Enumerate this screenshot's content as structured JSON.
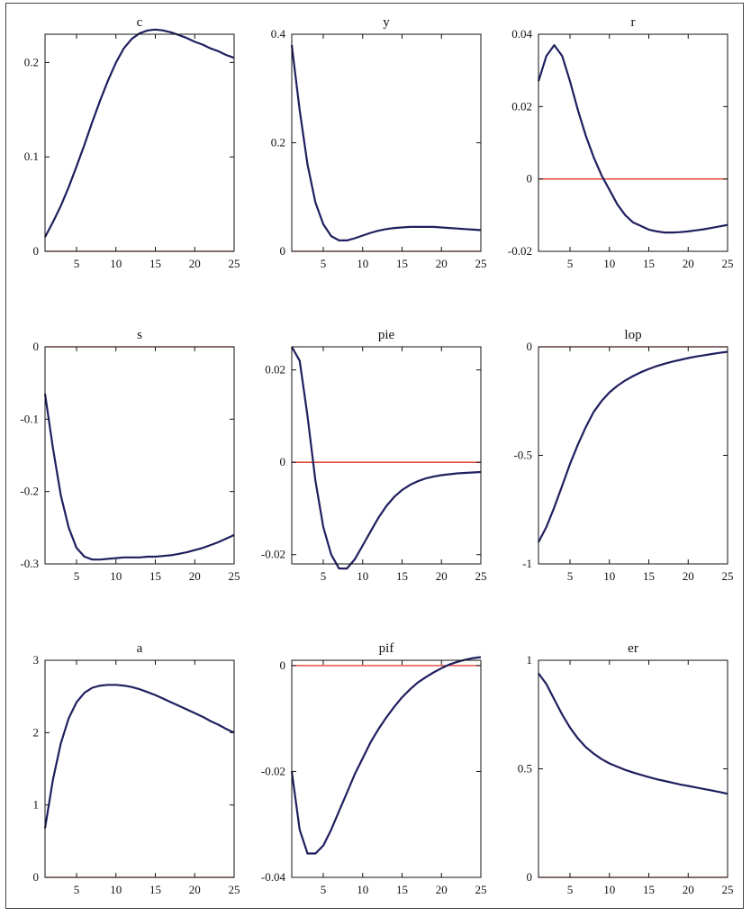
{
  "chart_data": [
    {
      "type": "line",
      "title": "c",
      "x": [
        1,
        2,
        3,
        4,
        5,
        6,
        7,
        8,
        9,
        10,
        11,
        12,
        13,
        14,
        15,
        16,
        17,
        18,
        19,
        20,
        21,
        22,
        23,
        24,
        25
      ],
      "values": [
        0.015,
        0.031,
        0.048,
        0.068,
        0.09,
        0.113,
        0.137,
        0.16,
        0.181,
        0.2,
        0.215,
        0.225,
        0.231,
        0.234,
        0.235,
        0.234,
        0.232,
        0.229,
        0.226,
        0.222,
        0.219,
        0.215,
        0.212,
        0.208,
        0.205
      ],
      "xlim": [
        1,
        25
      ],
      "ylim": [
        0,
        0.23
      ],
      "yticks": [
        0,
        0.1,
        0.2
      ],
      "ytick_labels": [
        "0",
        "0.1",
        "0.2"
      ],
      "xticks": [
        5,
        10,
        15,
        20,
        25
      ],
      "xtick_labels": [
        "5",
        "10",
        "15",
        "20",
        "25"
      ],
      "zero_line": 0
    },
    {
      "type": "line",
      "title": "y",
      "x": [
        1,
        2,
        3,
        4,
        5,
        6,
        7,
        8,
        9,
        10,
        11,
        12,
        13,
        14,
        15,
        16,
        17,
        18,
        19,
        20,
        21,
        22,
        23,
        24,
        25
      ],
      "values": [
        0.38,
        0.26,
        0.16,
        0.09,
        0.05,
        0.028,
        0.02,
        0.02,
        0.024,
        0.029,
        0.034,
        0.038,
        0.041,
        0.043,
        0.044,
        0.045,
        0.045,
        0.045,
        0.045,
        0.044,
        0.043,
        0.042,
        0.041,
        0.04,
        0.039
      ],
      "xlim": [
        1,
        25
      ],
      "ylim": [
        0,
        0.4
      ],
      "yticks": [
        0,
        0.2,
        0.4
      ],
      "ytick_labels": [
        "0",
        "0.2",
        "0.4"
      ],
      "xticks": [
        5,
        10,
        15,
        20,
        25
      ],
      "xtick_labels": [
        "5",
        "10",
        "15",
        "20",
        "25"
      ],
      "zero_line": 0
    },
    {
      "type": "line",
      "title": "r",
      "x": [
        1,
        2,
        3,
        4,
        5,
        6,
        7,
        8,
        9,
        10,
        11,
        12,
        13,
        14,
        15,
        16,
        17,
        18,
        19,
        20,
        21,
        22,
        23,
        24,
        25
      ],
      "values": [
        0.027,
        0.034,
        0.037,
        0.034,
        0.027,
        0.019,
        0.012,
        0.006,
        0.001,
        -0.003,
        -0.007,
        -0.01,
        -0.012,
        -0.013,
        -0.014,
        -0.0145,
        -0.0148,
        -0.0148,
        -0.0147,
        -0.0145,
        -0.0142,
        -0.0139,
        -0.0135,
        -0.0131,
        -0.0127
      ],
      "xlim": [
        1,
        25
      ],
      "ylim": [
        -0.02,
        0.04
      ],
      "yticks": [
        -0.02,
        0,
        0.02,
        0.04
      ],
      "ytick_labels": [
        "-0.02",
        "0",
        "0.02",
        "0.04"
      ],
      "xticks": [
        5,
        10,
        15,
        20,
        25
      ],
      "xtick_labels": [
        "5",
        "10",
        "15",
        "20",
        "25"
      ],
      "zero_line": 0
    },
    {
      "type": "line",
      "title": "s",
      "x": [
        1,
        2,
        3,
        4,
        5,
        6,
        7,
        8,
        9,
        10,
        11,
        12,
        13,
        14,
        15,
        16,
        17,
        18,
        19,
        20,
        21,
        22,
        23,
        24,
        25
      ],
      "values": [
        -0.065,
        -0.14,
        -0.205,
        -0.25,
        -0.278,
        -0.29,
        -0.294,
        -0.294,
        -0.293,
        -0.292,
        -0.291,
        -0.291,
        -0.291,
        -0.29,
        -0.29,
        -0.289,
        -0.288,
        -0.286,
        -0.284,
        -0.281,
        -0.278,
        -0.274,
        -0.27,
        -0.265,
        -0.26
      ],
      "xlim": [
        1,
        25
      ],
      "ylim": [
        -0.3,
        0
      ],
      "yticks": [
        -0.3,
        -0.2,
        -0.1,
        0
      ],
      "ytick_labels": [
        "-0.3",
        "-0.2",
        "-0.1",
        "0"
      ],
      "xticks": [
        5,
        10,
        15,
        20,
        25
      ],
      "xtick_labels": [
        "5",
        "10",
        "15",
        "20",
        "25"
      ],
      "zero_line": 0
    },
    {
      "type": "line",
      "title": "pie",
      "x": [
        1,
        2,
        3,
        4,
        5,
        6,
        7,
        8,
        9,
        10,
        11,
        12,
        13,
        14,
        15,
        16,
        17,
        18,
        19,
        20,
        21,
        22,
        23,
        24,
        25
      ],
      "values": [
        0.025,
        0.022,
        0.01,
        -0.004,
        -0.014,
        -0.02,
        -0.023,
        -0.023,
        -0.021,
        -0.018,
        -0.015,
        -0.012,
        -0.0095,
        -0.0075,
        -0.006,
        -0.0049,
        -0.0041,
        -0.0035,
        -0.0031,
        -0.0028,
        -0.0026,
        -0.0024,
        -0.0023,
        -0.0022,
        -0.0021
      ],
      "xlim": [
        1,
        25
      ],
      "ylim": [
        -0.022,
        0.025
      ],
      "yticks": [
        -0.02,
        0,
        0.02
      ],
      "ytick_labels": [
        "-0.02",
        "0",
        "0.02"
      ],
      "xticks": [
        5,
        10,
        15,
        20,
        25
      ],
      "xtick_labels": [
        "5",
        "10",
        "15",
        "20",
        "25"
      ],
      "zero_line": 0
    },
    {
      "type": "line",
      "title": "lop",
      "x": [
        1,
        2,
        3,
        4,
        5,
        6,
        7,
        8,
        9,
        10,
        11,
        12,
        13,
        14,
        15,
        16,
        17,
        18,
        19,
        20,
        21,
        22,
        23,
        24,
        25
      ],
      "values": [
        -0.9,
        -0.83,
        -0.74,
        -0.64,
        -0.54,
        -0.45,
        -0.37,
        -0.3,
        -0.25,
        -0.21,
        -0.18,
        -0.155,
        -0.135,
        -0.117,
        -0.102,
        -0.089,
        -0.078,
        -0.068,
        -0.06,
        -0.052,
        -0.045,
        -0.039,
        -0.033,
        -0.028,
        -0.023
      ],
      "xlim": [
        1,
        25
      ],
      "ylim": [
        -1,
        0
      ],
      "yticks": [
        -1,
        -0.5,
        0
      ],
      "ytick_labels": [
        "-1",
        "-0.5",
        "0"
      ],
      "xticks": [
        5,
        10,
        15,
        20,
        25
      ],
      "xtick_labels": [
        "5",
        "10",
        "15",
        "20",
        "25"
      ],
      "zero_line": 0
    },
    {
      "type": "line",
      "title": "a",
      "x": [
        1,
        2,
        3,
        4,
        5,
        6,
        7,
        8,
        9,
        10,
        11,
        12,
        13,
        14,
        15,
        16,
        17,
        18,
        19,
        20,
        21,
        22,
        23,
        24,
        25
      ],
      "values": [
        0.68,
        1.35,
        1.85,
        2.2,
        2.42,
        2.55,
        2.62,
        2.65,
        2.66,
        2.66,
        2.65,
        2.63,
        2.6,
        2.56,
        2.52,
        2.47,
        2.42,
        2.37,
        2.32,
        2.27,
        2.22,
        2.16,
        2.11,
        2.05,
        2.0
      ],
      "xlim": [
        1,
        25
      ],
      "ylim": [
        0,
        3
      ],
      "yticks": [
        0,
        1,
        2,
        3
      ],
      "ytick_labels": [
        "0",
        "1",
        "2",
        "3"
      ],
      "xticks": [
        5,
        10,
        15,
        20,
        25
      ],
      "xtick_labels": [
        "5",
        "10",
        "15",
        "20",
        "25"
      ],
      "zero_line": 0
    },
    {
      "type": "line",
      "title": "pif",
      "x": [
        1,
        2,
        3,
        4,
        5,
        6,
        7,
        8,
        9,
        10,
        11,
        12,
        13,
        14,
        15,
        16,
        17,
        18,
        19,
        20,
        21,
        22,
        23,
        24,
        25
      ],
      "values": [
        -0.02,
        -0.031,
        -0.0355,
        -0.0355,
        -0.034,
        -0.031,
        -0.0275,
        -0.024,
        -0.0205,
        -0.0175,
        -0.0145,
        -0.012,
        -0.0098,
        -0.0078,
        -0.006,
        -0.0045,
        -0.0032,
        -0.0022,
        -0.0013,
        -0.0005,
        0.0002,
        0.0007,
        0.0011,
        0.0014,
        0.0016
      ],
      "xlim": [
        1,
        25
      ],
      "ylim": [
        -0.04,
        0.001
      ],
      "yticks": [
        -0.04,
        -0.02,
        0
      ],
      "ytick_labels": [
        "-0.04",
        "-0.02",
        "0"
      ],
      "xticks": [
        5,
        10,
        15,
        20,
        25
      ],
      "xtick_labels": [
        "5",
        "10",
        "15",
        "20",
        "25"
      ],
      "zero_line": 0
    },
    {
      "type": "line",
      "title": "er",
      "x": [
        1,
        2,
        3,
        4,
        5,
        6,
        7,
        8,
        9,
        10,
        11,
        12,
        13,
        14,
        15,
        16,
        17,
        18,
        19,
        20,
        21,
        22,
        23,
        24,
        25
      ],
      "values": [
        0.94,
        0.89,
        0.82,
        0.75,
        0.69,
        0.64,
        0.6,
        0.57,
        0.545,
        0.525,
        0.51,
        0.495,
        0.483,
        0.472,
        0.462,
        0.452,
        0.444,
        0.436,
        0.428,
        0.421,
        0.414,
        0.407,
        0.4,
        0.393,
        0.385
      ],
      "xlim": [
        1,
        25
      ],
      "ylim": [
        0,
        1
      ],
      "yticks": [
        0,
        0.5,
        1
      ],
      "ytick_labels": [
        "0",
        "0.5",
        "1"
      ],
      "xticks": [
        5,
        10,
        15,
        20,
        25
      ],
      "xtick_labels": [
        "5",
        "10",
        "15",
        "20",
        "25"
      ],
      "zero_line": 0
    }
  ],
  "colors": {
    "response_line": "#1f1f5f",
    "zero_line": "#e03020",
    "axes": "#111111"
  }
}
